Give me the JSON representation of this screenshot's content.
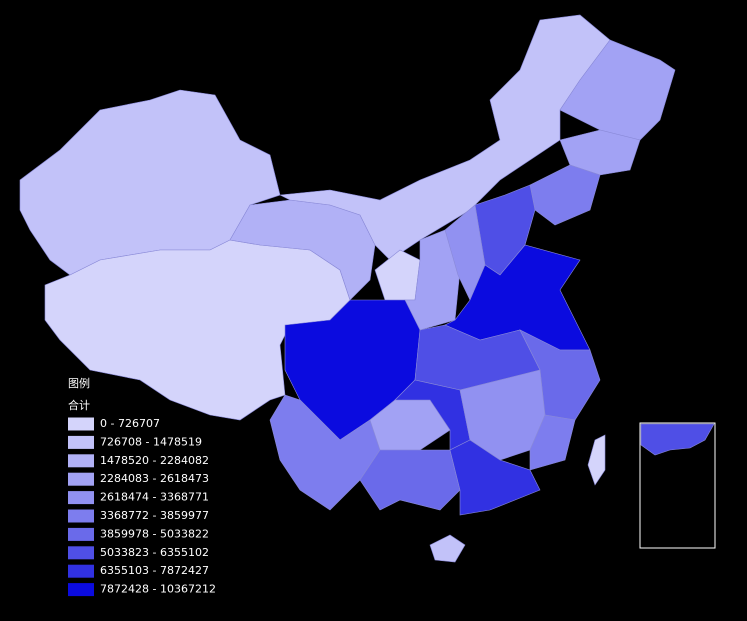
{
  "legend": {
    "title": "图例",
    "subtitle": "合计",
    "classes": [
      {
        "label": "0 - 726707",
        "color": "#d4d4fb"
      },
      {
        "label": "726708 - 1478519",
        "color": "#c2c2f9"
      },
      {
        "label": "1478520 - 2284082",
        "color": "#b1b1f6"
      },
      {
        "label": "2284083 - 2618473",
        "color": "#a2a2f4"
      },
      {
        "label": "2618474 - 3368771",
        "color": "#9191f1"
      },
      {
        "label": "3368772 - 3859977",
        "color": "#7d7dee"
      },
      {
        "label": "3859978 - 5033822",
        "color": "#6a6aea"
      },
      {
        "label": "5033823 - 6355102",
        "color": "#4f4fe6"
      },
      {
        "label": "6355103 - 7872427",
        "color": "#3131e2"
      },
      {
        "label": "7872428 - 10367212",
        "color": "#0b0bdf"
      }
    ]
  }
}
